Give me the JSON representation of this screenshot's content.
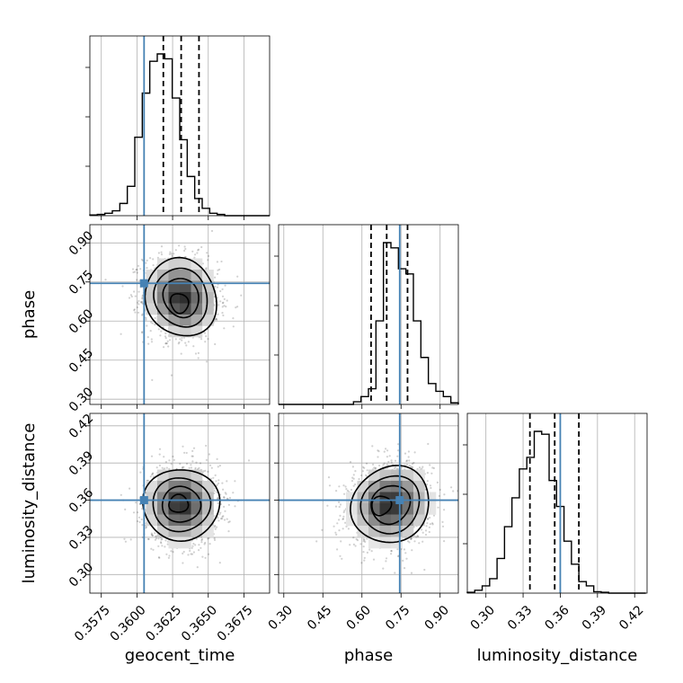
{
  "chart_data": {
    "type": "corner",
    "truth_color": "#4682b4",
    "parameters": [
      {
        "name": "geocent_time",
        "label": "geocent_time",
        "range": [
          0.3567,
          0.3693
        ],
        "ticks": [
          "0.3575",
          "0.3600",
          "0.3625",
          "0.3650",
          "0.3675"
        ],
        "tick_values": [
          0.3575,
          0.36,
          0.3625,
          0.365,
          0.3675
        ],
        "truth": 0.3605,
        "quantiles": [
          0.36185,
          0.3631,
          0.36435
        ],
        "hist_edges_start": 0.3567,
        "hist_bin_width": 0.000525,
        "hist_counts": [
          0.3,
          0.5,
          1,
          2,
          5,
          12,
          32,
          50,
          63,
          66,
          64,
          48,
          31,
          16,
          7,
          3,
          1,
          0.5,
          0,
          0,
          0,
          0,
          0,
          0
        ]
      },
      {
        "name": "phase",
        "label": "phase",
        "range": [
          0.28,
          0.97
        ],
        "ticks": [
          "0.30",
          "0.45",
          "0.60",
          "0.75",
          "0.90"
        ],
        "tick_values": [
          0.3,
          0.45,
          0.6,
          0.75,
          0.9
        ],
        "truth": 0.745,
        "quantiles": [
          0.635,
          0.695,
          0.775
        ],
        "hist_edges_start": 0.28,
        "hist_bin_width": 0.02875,
        "hist_counts": [
          0,
          0,
          0,
          0,
          0,
          0,
          0,
          0,
          0,
          0,
          0.5,
          1.5,
          3,
          16,
          31,
          30,
          26,
          25,
          16,
          9,
          4,
          2.5,
          1.5,
          0.3
        ]
      },
      {
        "name": "luminosity_distance",
        "label": "luminosity_distance",
        "range": [
          0.285,
          0.43
        ],
        "ticks": [
          "0.30",
          "0.33",
          "0.36",
          "0.39",
          "0.42"
        ],
        "tick_values": [
          0.3,
          0.33,
          0.36,
          0.39,
          0.42
        ],
        "truth": 0.36,
        "quantiles": [
          0.3355,
          0.3555,
          0.375
        ],
        "hist_edges_start": 0.285,
        "hist_bin_width": 0.006,
        "hist_counts": [
          0.3,
          1,
          2.5,
          5,
          12,
          23,
          33,
          43,
          47,
          56,
          55,
          39,
          30,
          18,
          10,
          4,
          2.5,
          0.5,
          0.3,
          0,
          0,
          0,
          0,
          0
        ]
      }
    ],
    "pair_plots": [
      {
        "x": "geocent_time",
        "y": "phase",
        "center": [
          0.3631,
          0.69
        ],
        "sigma": [
          0.00125,
          0.075
        ],
        "rho": -0.1,
        "peak": [
          0.3629,
          0.655
        ]
      },
      {
        "x": "geocent_time",
        "y": "luminosity_distance",
        "center": [
          0.3631,
          0.3565
        ],
        "sigma": [
          0.00125,
          0.0155
        ],
        "rho": 0.0,
        "peak": [
          0.3628,
          0.3575
        ]
      },
      {
        "x": "phase",
        "y": "luminosity_distance",
        "center": [
          0.71,
          0.3565
        ],
        "sigma": [
          0.075,
          0.0155
        ],
        "rho": 0.1,
        "peak": [
          0.65,
          0.355
        ]
      }
    ],
    "contour_levels_sigma": [
      0.5,
      1.0,
      1.5,
      2.0
    ],
    "grid": true
  }
}
